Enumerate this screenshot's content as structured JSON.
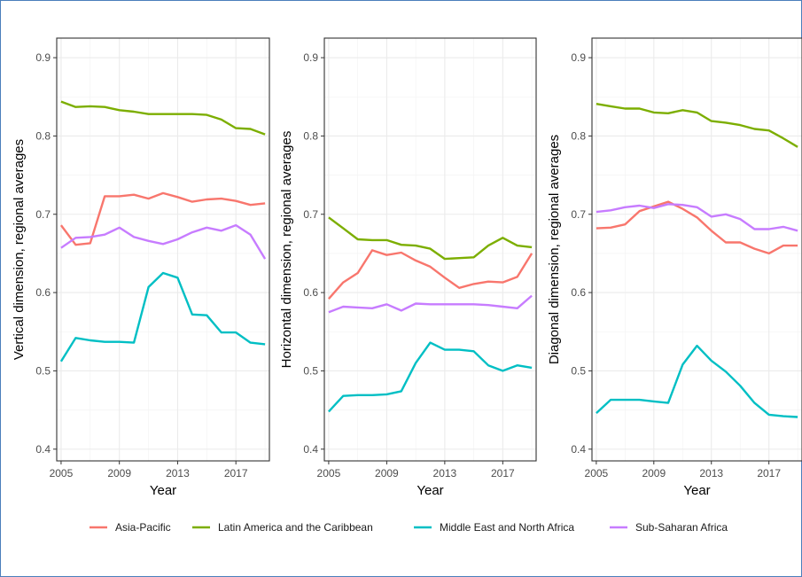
{
  "chart_data": [
    {
      "type": "line",
      "ylabel": "Vertical dimension, regional averages",
      "xlabel": "Year",
      "xlim": [
        2004.7,
        2019.3
      ],
      "ylim": [
        0.385,
        0.925
      ],
      "x_ticks": [
        2005,
        2009,
        2013,
        2017
      ],
      "y_ticks": [
        0.4,
        0.5,
        0.6,
        0.7,
        0.8,
        0.9
      ],
      "grid": true,
      "x": [
        2005,
        2006,
        2007,
        2008,
        2009,
        2010,
        2011,
        2012,
        2013,
        2014,
        2015,
        2016,
        2017,
        2018,
        2019
      ],
      "series": [
        {
          "name": "Asia-Pacific",
          "values": [
            0.686,
            0.661,
            0.663,
            0.723,
            0.723,
            0.725,
            0.72,
            0.727,
            0.722,
            0.716,
            0.719,
            0.72,
            0.717,
            0.712,
            0.714
          ]
        },
        {
          "name": "Latin America and the Caribbean",
          "values": [
            0.844,
            0.837,
            0.838,
            0.837,
            0.833,
            0.831,
            0.828,
            0.828,
            0.828,
            0.828,
            0.827,
            0.821,
            0.81,
            0.809,
            0.802
          ]
        },
        {
          "name": "Middle East and North Africa",
          "values": [
            0.512,
            0.542,
            0.539,
            0.537,
            0.537,
            0.536,
            0.607,
            0.625,
            0.619,
            0.572,
            0.571,
            0.549,
            0.549,
            0.536,
            0.534
          ]
        },
        {
          "name": "Sub-Saharan Africa",
          "values": [
            0.657,
            0.67,
            0.671,
            0.674,
            0.683,
            0.671,
            0.666,
            0.662,
            0.668,
            0.677,
            0.683,
            0.679,
            0.686,
            0.674,
            0.643
          ]
        }
      ]
    },
    {
      "type": "line",
      "ylabel": "Horizontal dimension, regional averages",
      "xlabel": "Year",
      "xlim": [
        2004.7,
        2019.3
      ],
      "ylim": [
        0.385,
        0.925
      ],
      "x_ticks": [
        2005,
        2009,
        2013,
        2017
      ],
      "y_ticks": [
        0.4,
        0.5,
        0.6,
        0.7,
        0.8,
        0.9
      ],
      "grid": true,
      "x": [
        2005,
        2006,
        2007,
        2008,
        2009,
        2010,
        2011,
        2012,
        2013,
        2014,
        2015,
        2016,
        2017,
        2018,
        2019
      ],
      "series": [
        {
          "name": "Asia-Pacific",
          "values": [
            0.592,
            0.613,
            0.625,
            0.654,
            0.648,
            0.651,
            0.641,
            0.633,
            0.619,
            0.606,
            0.611,
            0.614,
            0.613,
            0.62,
            0.65
          ]
        },
        {
          "name": "Latin America and the Caribbean",
          "values": [
            0.696,
            0.682,
            0.668,
            0.667,
            0.667,
            0.661,
            0.66,
            0.656,
            0.643,
            0.644,
            0.645,
            0.66,
            0.67,
            0.66,
            0.658
          ]
        },
        {
          "name": "Middle East and North Africa",
          "values": [
            0.448,
            0.468,
            0.469,
            0.469,
            0.47,
            0.474,
            0.51,
            0.536,
            0.527,
            0.527,
            0.525,
            0.507,
            0.5,
            0.507,
            0.504
          ]
        },
        {
          "name": "Sub-Saharan Africa",
          "values": [
            0.575,
            0.582,
            0.581,
            0.58,
            0.585,
            0.577,
            0.586,
            0.585,
            0.585,
            0.585,
            0.585,
            0.584,
            0.582,
            0.58,
            0.596
          ]
        }
      ]
    },
    {
      "type": "line",
      "ylabel": "Diagonal dimension, regional averages",
      "xlabel": "Year",
      "xlim": [
        2004.7,
        2019.3
      ],
      "ylim": [
        0.385,
        0.925
      ],
      "x_ticks": [
        2005,
        2009,
        2013,
        2017
      ],
      "y_ticks": [
        0.4,
        0.5,
        0.6,
        0.7,
        0.8,
        0.9
      ],
      "grid": true,
      "x": [
        2005,
        2006,
        2007,
        2008,
        2009,
        2010,
        2011,
        2012,
        2013,
        2014,
        2015,
        2016,
        2017,
        2018,
        2019
      ],
      "series": [
        {
          "name": "Asia-Pacific",
          "values": [
            0.682,
            0.683,
            0.687,
            0.704,
            0.71,
            0.716,
            0.707,
            0.696,
            0.679,
            0.664,
            0.664,
            0.656,
            0.65,
            0.66,
            0.66
          ]
        },
        {
          "name": "Latin America and the Caribbean",
          "values": [
            0.841,
            0.838,
            0.835,
            0.835,
            0.83,
            0.829,
            0.833,
            0.83,
            0.819,
            0.817,
            0.814,
            0.809,
            0.807,
            0.797,
            0.786
          ]
        },
        {
          "name": "Middle East and North Africa",
          "values": [
            0.446,
            0.463,
            0.463,
            0.463,
            0.461,
            0.459,
            0.508,
            0.532,
            0.513,
            0.499,
            0.481,
            0.459,
            0.444,
            0.442,
            0.441
          ]
        },
        {
          "name": "Sub-Saharan Africa",
          "values": [
            0.703,
            0.705,
            0.709,
            0.711,
            0.708,
            0.713,
            0.712,
            0.709,
            0.697,
            0.7,
            0.694,
            0.681,
            0.681,
            0.684,
            0.679
          ]
        }
      ]
    }
  ],
  "legend": {
    "placement": "bottom",
    "items": [
      {
        "label": "Asia-Pacific",
        "color": "#F8766D"
      },
      {
        "label": "Latin America and the Caribbean",
        "color": "#7CAE00"
      },
      {
        "label": "Middle East and North Africa",
        "color": "#00BFC4"
      },
      {
        "label": "Sub-Saharan Africa",
        "color": "#C77CFF"
      }
    ]
  }
}
